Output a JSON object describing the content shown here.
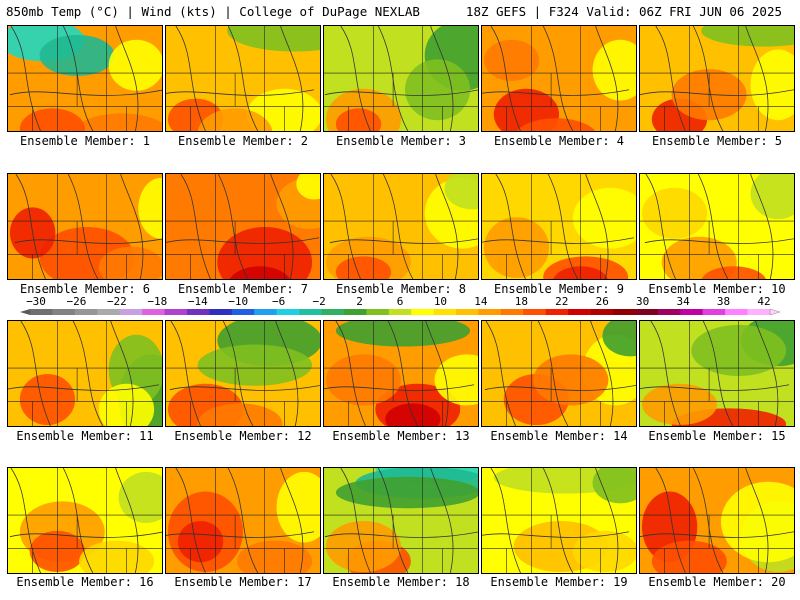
{
  "header": {
    "left_title": "850mb Temp (°C) | Wind (kts) | College of DuPage NEXLAB",
    "right_title": "18Z GEFS | F324 Valid: 06Z FRI JUN 06 2025"
  },
  "colorbar": {
    "tick_labels": [
      "−30",
      "−26",
      "−22",
      "−18",
      "−14",
      "−10",
      "−6",
      "−2",
      "2",
      "6",
      "10",
      "14",
      "18",
      "22",
      "26",
      "30",
      "34",
      "38",
      "42"
    ],
    "colors": [
      "#707070",
      "#828282",
      "#969696",
      "#aaaaaa",
      "#c8a0e0",
      "#e060e0",
      "#b040d0",
      "#7030c0",
      "#3030c0",
      "#2060e0",
      "#20a0f0",
      "#20d0e0",
      "#20c0a0",
      "#30b060",
      "#40a030",
      "#80c020",
      "#c0e020",
      "#ffff00",
      "#ffe000",
      "#ffc000",
      "#ff9c00",
      "#ff7a00",
      "#ff5000",
      "#f02000",
      "#d00000",
      "#b00000",
      "#900000",
      "#800020",
      "#a00060",
      "#c000a0",
      "#e040e0",
      "#ff80ff",
      "#ffb0ff"
    ]
  },
  "panels": [
    {
      "label": "Ensemble Member: 1"
    },
    {
      "label": "Ensemble Member: 2"
    },
    {
      "label": "Ensemble Member: 3"
    },
    {
      "label": "Ensemble Member: 4"
    },
    {
      "label": "Ensemble Member: 5"
    },
    {
      "label": "Ensemble Member: 6"
    },
    {
      "label": "Ensemble Member: 7"
    },
    {
      "label": "Ensemble Member: 8"
    },
    {
      "label": "Ensemble Member: 9"
    },
    {
      "label": "Ensemble Member: 10"
    },
    {
      "label": "Ensemble Member: 11"
    },
    {
      "label": "Ensemble Member: 12"
    },
    {
      "label": "Ensemble Member: 13"
    },
    {
      "label": "Ensemble Member: 14"
    },
    {
      "label": "Ensemble Member: 15"
    },
    {
      "label": "Ensemble Member: 16"
    },
    {
      "label": "Ensemble Member: 17"
    },
    {
      "label": "Ensemble Member: 18"
    },
    {
      "label": "Ensemble Member: 19"
    },
    {
      "label": "Ensemble Member: 20"
    }
  ]
}
